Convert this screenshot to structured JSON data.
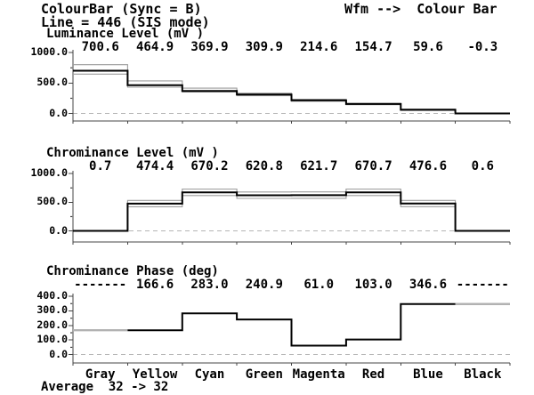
{
  "header": {
    "left": "ColourBar (Sync = B)",
    "right": "Wfm -->  Colour Bar",
    "line2": "Line = 446 (SIS mode)"
  },
  "footer": {
    "average": "Average  32 -> 32"
  },
  "colors": {
    "trace": "#000000",
    "tolerance": "#9c9c9c",
    "undefined_trace": "#b2b2b2",
    "zero_dash": "#b5b5b5",
    "frame": "#444444",
    "background": "#ffffff"
  },
  "chart_data": [
    {
      "type": "line",
      "step": true,
      "title": "Luminance Level (mV )",
      "categories": [
        "Gray",
        "Yellow",
        "Cyan",
        "Green",
        "Magenta",
        "Red",
        "Blue",
        "Black"
      ],
      "values": [
        700.6,
        464.9,
        369.9,
        309.9,
        214.6,
        154.7,
        59.6,
        -0.3
      ],
      "value_labels": [
        "700.6",
        "464.9",
        "369.9",
        "309.9",
        "214.6",
        "154.7",
        "59.6",
        "-0.3"
      ],
      "tol_upper": [
        800,
        535,
        415,
        332,
        230,
        167,
        70,
        7
      ],
      "tol_lower": [
        645,
        430,
        350,
        290,
        200,
        143,
        49,
        -8
      ],
      "ylim": [
        0,
        1000
      ],
      "yticks": [
        {
          "v": 1000,
          "label": "1000.0"
        },
        {
          "v": 500,
          "label": "500.0"
        },
        {
          "v": 0,
          "label": "0.0"
        }
      ],
      "minor_ticks": [
        250,
        750
      ],
      "zero_line_dashed": true,
      "legend": "none",
      "grid": "off"
    },
    {
      "type": "line",
      "step": true,
      "title": "Chrominance Level (mV )",
      "categories": [
        "Gray",
        "Yellow",
        "Cyan",
        "Green",
        "Magenta",
        "Red",
        "Blue",
        "Black"
      ],
      "values": [
        0.7,
        474.4,
        670.2,
        620.8,
        621.7,
        670.7,
        476.6,
        0.6
      ],
      "value_labels": [
        "0.7",
        "474.4",
        "670.2",
        "620.8",
        "621.7",
        "670.7",
        "476.6",
        "0.6"
      ],
      "tol_upper": [
        8,
        530,
        728,
        678,
        679,
        728,
        530,
        8
      ],
      "tol_lower": [
        -7,
        420,
        616,
        566,
        567,
        616,
        422,
        -7
      ],
      "ylim": [
        0,
        1000
      ],
      "yticks": [
        {
          "v": 1000,
          "label": "1000.0"
        },
        {
          "v": 500,
          "label": "500.0"
        },
        {
          "v": 0,
          "label": "0.0"
        }
      ],
      "minor_ticks": [
        250,
        750
      ],
      "zero_line_dashed": true,
      "legend": "none",
      "grid": "off"
    },
    {
      "type": "line",
      "step": true,
      "title": "Chrominance Phase (deg)",
      "categories": [
        "Gray",
        "Yellow",
        "Cyan",
        "Green",
        "Magenta",
        "Red",
        "Blue",
        "Black"
      ],
      "values": [
        null,
        166.6,
        283.0,
        240.9,
        61.0,
        103.0,
        346.6,
        null
      ],
      "value_labels": [
        "-------",
        "166.6",
        "283.0",
        "240.9",
        "61.0",
        "103.0",
        "346.6",
        "-------"
      ],
      "undefined_segments": [
        {
          "index": 0,
          "value": 166.6
        },
        {
          "index": 7,
          "value": 346.6
        }
      ],
      "ylim": [
        0,
        400
      ],
      "yticks": [
        {
          "v": 400,
          "label": "400.0"
        },
        {
          "v": 300,
          "label": "300.0"
        },
        {
          "v": 200,
          "label": "200.0"
        },
        {
          "v": 100,
          "label": "100.0"
        },
        {
          "v": 0,
          "label": "0.0"
        }
      ],
      "minor_ticks": [
        50,
        150,
        250,
        350
      ],
      "zero_line_dashed": true,
      "legend": "none",
      "grid": "off"
    }
  ]
}
